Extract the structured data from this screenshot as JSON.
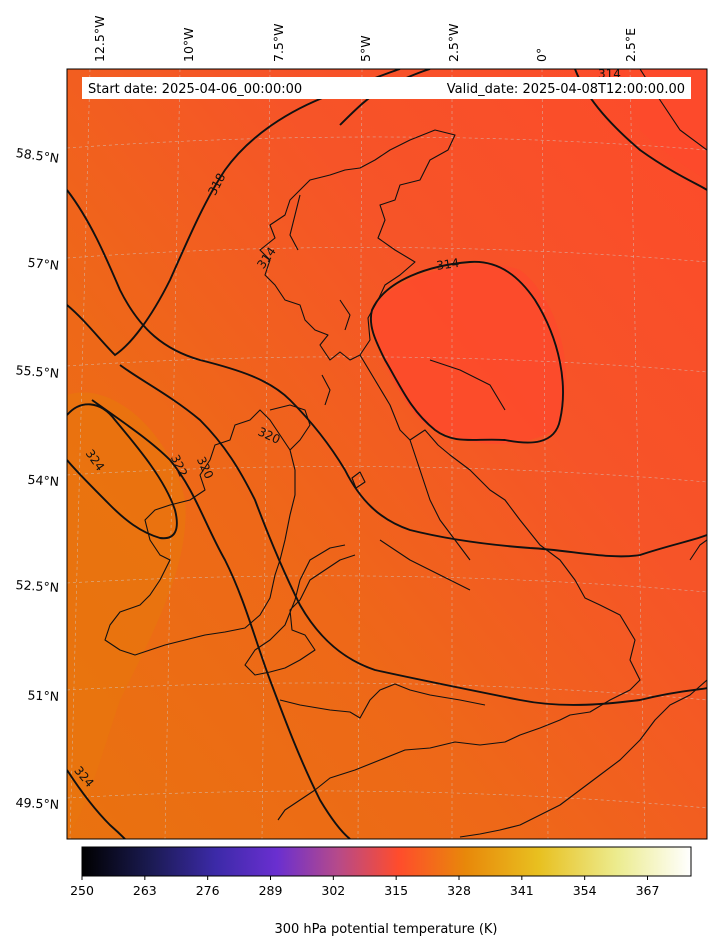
{
  "header": {
    "start_date": "Start date: 2025-04-06_00:00:00",
    "valid_date": "Valid_date: 2025-04-08T12:00:00.00"
  },
  "map": {
    "field": "300 hPa potential temperature",
    "longitude_ticks": [
      "12.5°W",
      "10°W",
      "7.5°W",
      "5°W",
      "2.5°W",
      "0°",
      "2.5°E"
    ],
    "latitude_ticks": [
      "58.5°N",
      "57°N",
      "55.5°N",
      "54°N",
      "52.5°N",
      "51°N",
      "49.5°N"
    ],
    "contour_labels": [
      "314",
      "318",
      "314",
      "320",
      "322",
      "320",
      "324",
      "314",
      "324"
    ],
    "colors": {
      "fill_main": "#f0661a",
      "fill_warm": "#e8780c",
      "fill_cool": "#fb4a28",
      "contour": "#111111",
      "coast": "#111111",
      "grid": "#c8c8c8"
    }
  },
  "colorbar": {
    "label": "300 hPa potential temperature (K)",
    "min": 250,
    "max": 376,
    "ticks": [
      "250",
      "263",
      "276",
      "289",
      "302",
      "315",
      "328",
      "341",
      "354",
      "367"
    ],
    "colormap": "CMRmap",
    "stops": [
      "#000000",
      "#1a1a50",
      "#3c2aa8",
      "#6a2fd0",
      "#b64a8a",
      "#ff4c2c",
      "#e8880a",
      "#e8c020",
      "#ecec90",
      "#ffffff"
    ]
  }
}
